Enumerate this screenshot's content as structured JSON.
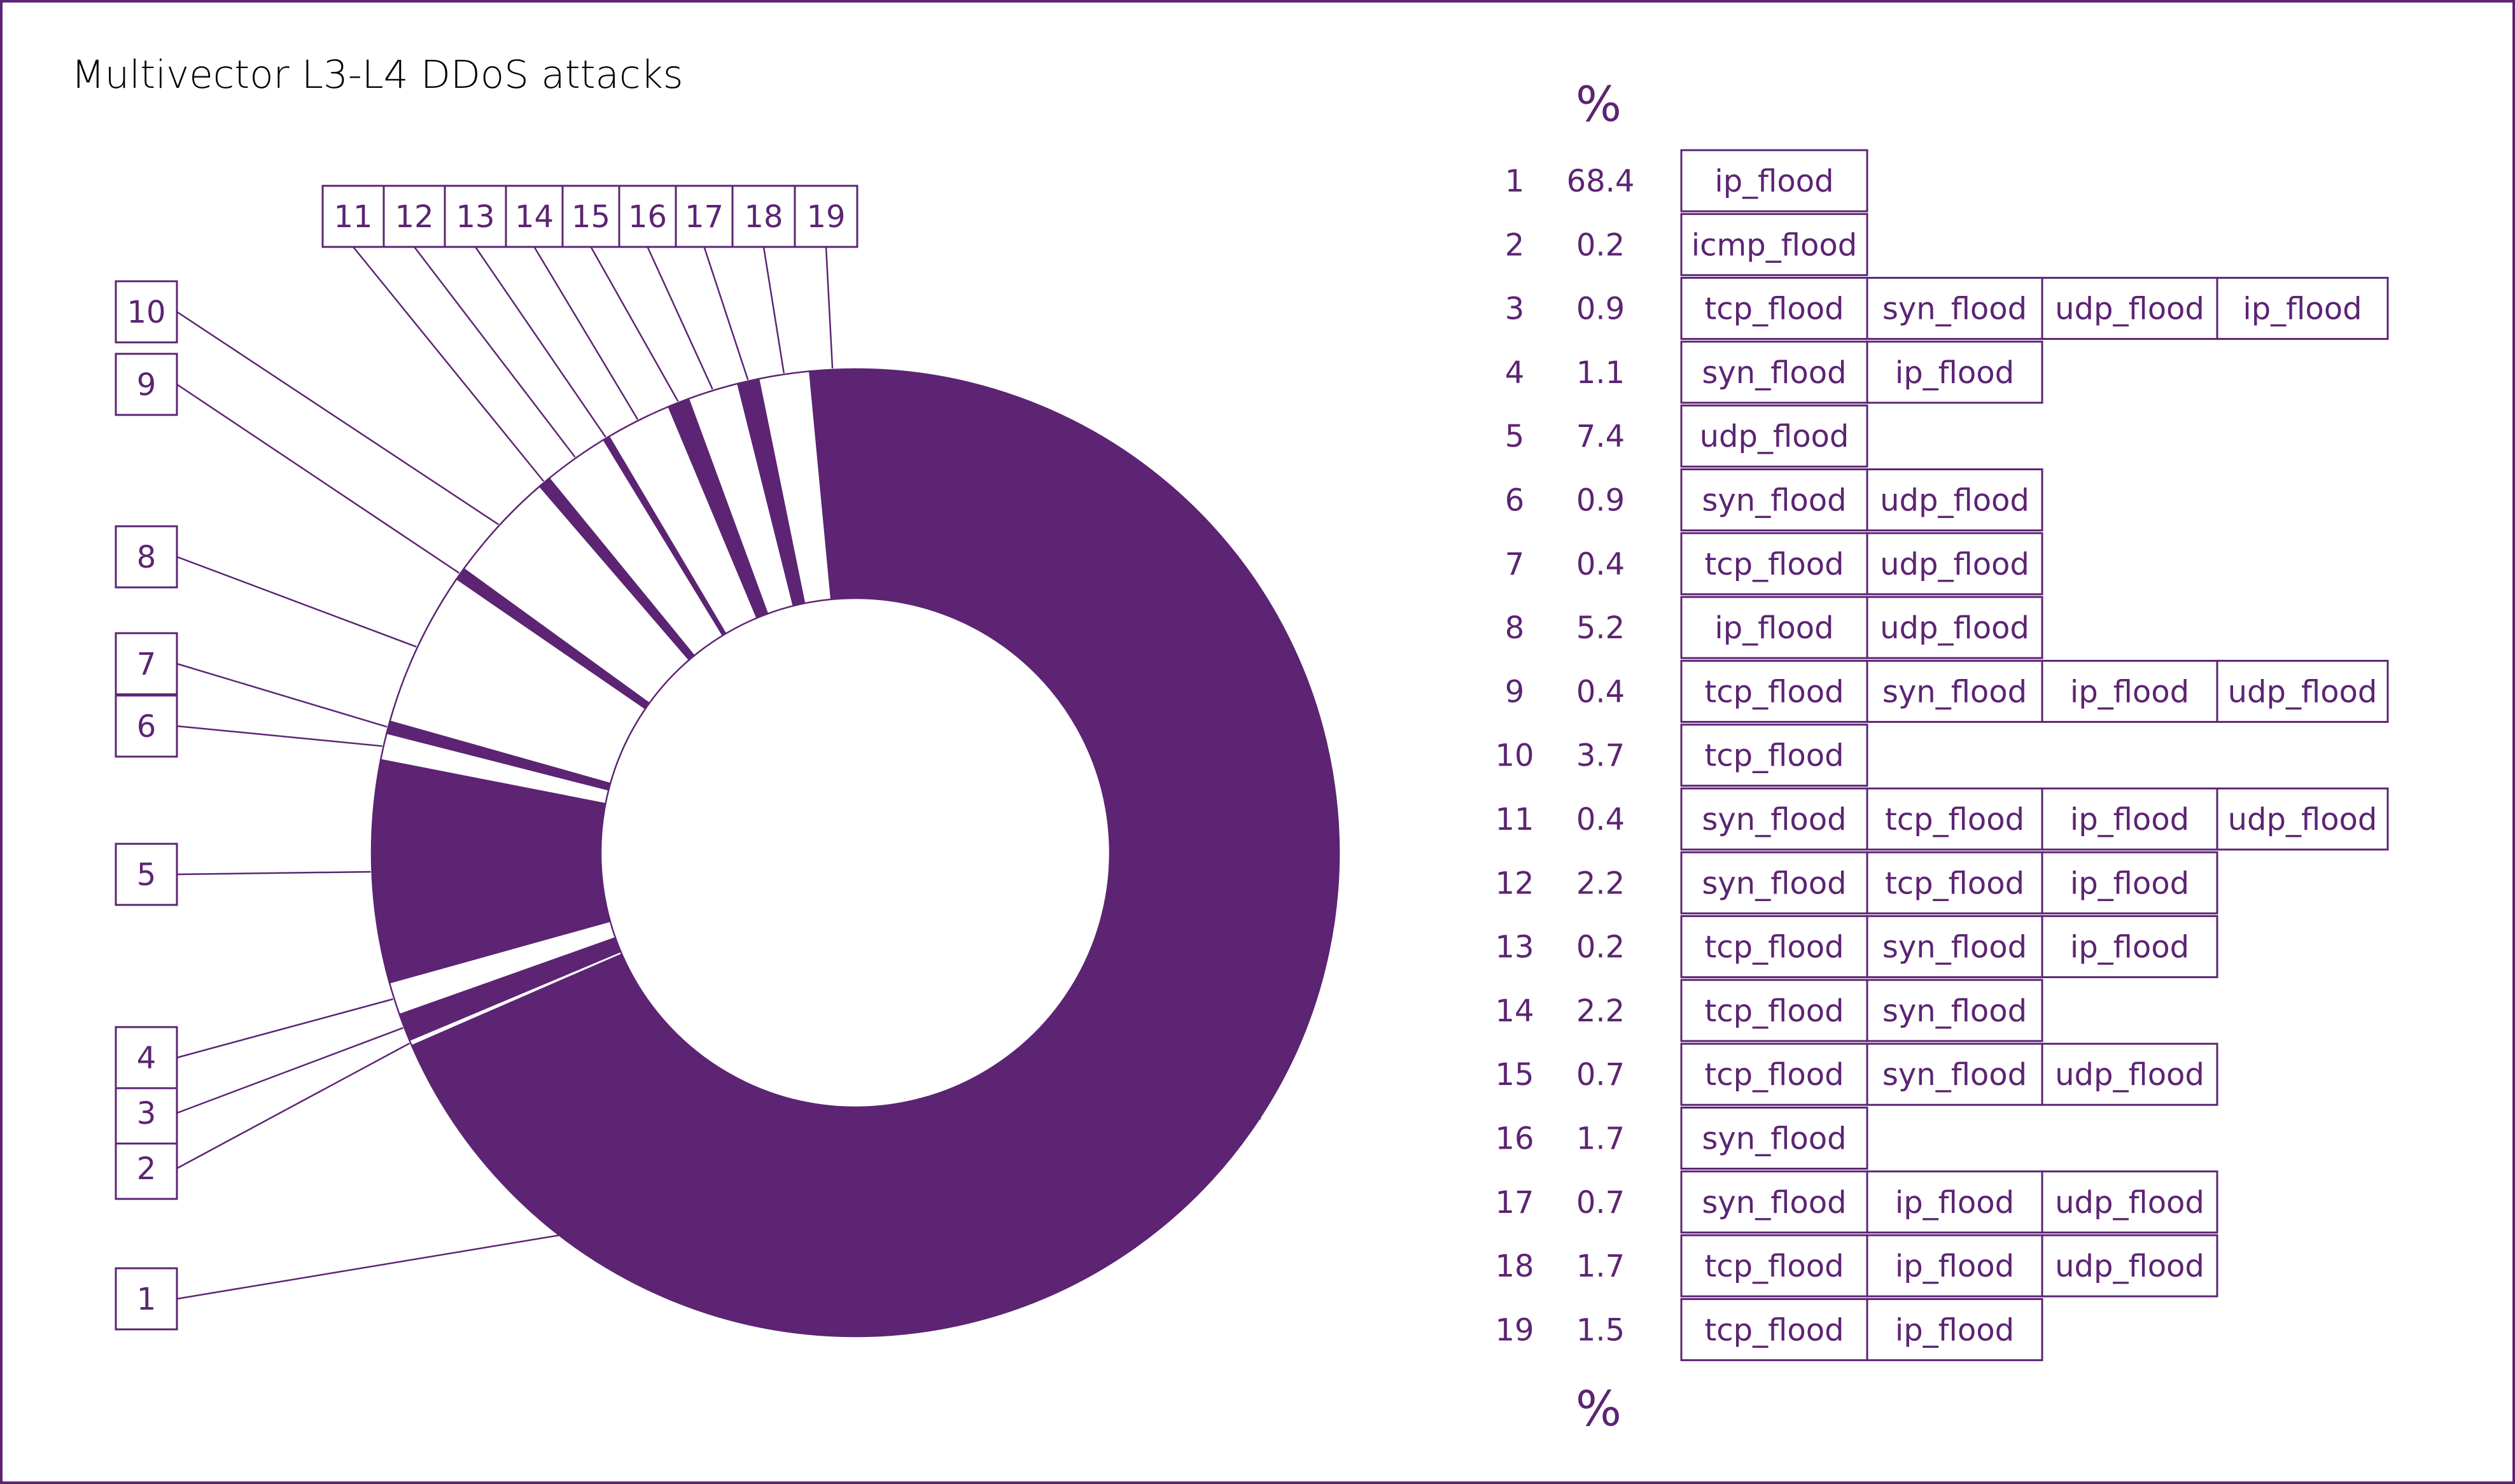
{
  "chart_data": {
    "type": "pie",
    "title": "Multivector L3-L4 DDoS attacks",
    "value_header": "%",
    "value_footer": "%",
    "colors": {
      "accent": "#5c2473",
      "alternate": "#ffffff"
    },
    "rows": [
      {
        "id": "1",
        "value": 68.4,
        "value_text": "68.4",
        "vectors": [
          "ip_flood"
        ]
      },
      {
        "id": "2",
        "value": 0.2,
        "value_text": "0.2",
        "vectors": [
          "icmp_flood"
        ]
      },
      {
        "id": "3",
        "value": 0.9,
        "value_text": "0.9",
        "vectors": [
          "tcp_flood",
          "syn_flood",
          "udp_flood",
          "ip_flood"
        ]
      },
      {
        "id": "4",
        "value": 1.1,
        "value_text": "1.1",
        "vectors": [
          "syn_flood",
          "ip_flood"
        ]
      },
      {
        "id": "5",
        "value": 7.4,
        "value_text": "7.4",
        "vectors": [
          "udp_flood"
        ]
      },
      {
        "id": "6",
        "value": 0.9,
        "value_text": "0.9",
        "vectors": [
          "syn_flood",
          "udp_flood"
        ]
      },
      {
        "id": "7",
        "value": 0.4,
        "value_text": "0.4",
        "vectors": [
          "tcp_flood",
          "udp_flood"
        ]
      },
      {
        "id": "8",
        "value": 5.2,
        "value_text": "5.2",
        "vectors": [
          "ip_flood",
          "udp_flood"
        ]
      },
      {
        "id": "9",
        "value": 0.4,
        "value_text": "0.4",
        "vectors": [
          "tcp_flood",
          "syn_flood",
          "ip_flood",
          "udp_flood"
        ]
      },
      {
        "id": "10",
        "value": 3.7,
        "value_text": "3.7",
        "vectors": [
          "tcp_flood"
        ]
      },
      {
        "id": "11",
        "value": 0.4,
        "value_text": "0.4",
        "vectors": [
          "syn_flood",
          "tcp_flood",
          "ip_flood",
          "udp_flood"
        ]
      },
      {
        "id": "12",
        "value": 2.2,
        "value_text": "2.2",
        "vectors": [
          "syn_flood",
          "tcp_flood",
          "ip_flood"
        ]
      },
      {
        "id": "13",
        "value": 0.2,
        "value_text": "0.2",
        "vectors": [
          "tcp_flood",
          "syn_flood",
          "ip_flood"
        ]
      },
      {
        "id": "14",
        "value": 2.2,
        "value_text": "2.2",
        "vectors": [
          "tcp_flood",
          "syn_flood"
        ]
      },
      {
        "id": "15",
        "value": 0.7,
        "value_text": "0.7",
        "vectors": [
          "tcp_flood",
          "syn_flood",
          "udp_flood"
        ]
      },
      {
        "id": "16",
        "value": 1.7,
        "value_text": "1.7",
        "vectors": [
          "syn_flood"
        ]
      },
      {
        "id": "17",
        "value": 0.7,
        "value_text": "0.7",
        "vectors": [
          "syn_flood",
          "ip_flood",
          "udp_flood"
        ]
      },
      {
        "id": "18",
        "value": 1.7,
        "value_text": "1.7",
        "vectors": [
          "tcp_flood",
          "ip_flood",
          "udp_flood"
        ]
      },
      {
        "id": "19",
        "value": 1.5,
        "value_text": "1.5",
        "vectors": [
          "tcp_flood",
          "ip_flood"
        ]
      }
    ]
  }
}
